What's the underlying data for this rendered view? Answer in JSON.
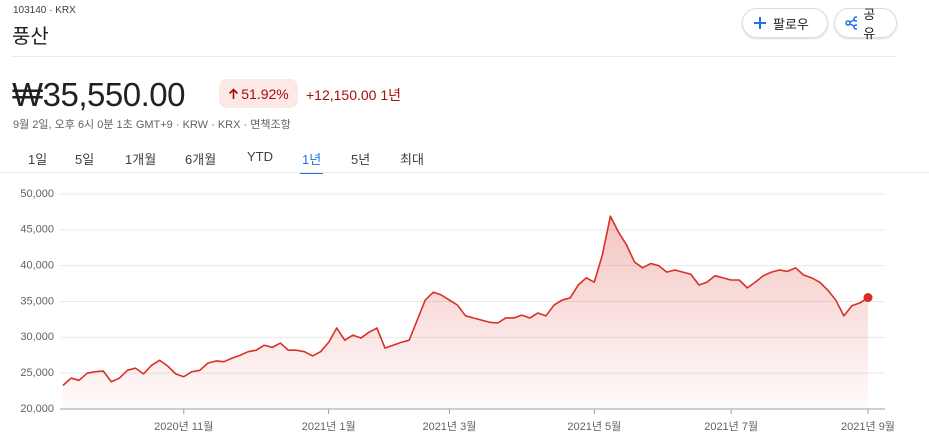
{
  "header": {
    "code": "103140 · KRX",
    "name": "풍산",
    "follow": "팔로우",
    "share": "공유"
  },
  "quote": {
    "price": "₩35,550.00",
    "change_pct": "51.92%",
    "change_abs": "+12,150.00",
    "period": "1년",
    "meta": "9월 2일, 오후 6시 0분 1초 GMT+9 · KRW · KRX · 면책조항"
  },
  "ranges": {
    "items": [
      "1일",
      "5일",
      "1개월",
      "6개월",
      "YTD",
      "1년",
      "5년",
      "최대"
    ],
    "selected": 5
  },
  "chart_data": {
    "type": "line",
    "color": "#d93025",
    "categories": [
      null,
      null,
      null,
      null,
      null,
      null,
      null,
      null,
      null,
      null,
      null,
      null,
      null,
      null,
      null,
      "2020년 11월",
      null,
      null,
      null,
      null,
      null,
      null,
      null,
      null,
      null,
      null,
      null,
      null,
      null,
      null,
      null,
      null,
      null,
      "2021년 1월",
      null,
      null,
      null,
      null,
      null,
      null,
      null,
      null,
      null,
      null,
      null,
      null,
      null,
      null,
      "2021년 3월",
      null,
      null,
      null,
      null,
      null,
      null,
      null,
      null,
      null,
      null,
      null,
      null,
      null,
      null,
      null,
      null,
      null,
      "2021년 5월",
      null,
      null,
      null,
      null,
      null,
      null,
      null,
      null,
      null,
      null,
      null,
      null,
      null,
      null,
      null,
      null,
      "2021년 7월",
      null,
      null,
      null,
      null,
      null,
      null,
      null,
      null,
      null,
      null,
      null,
      null,
      null,
      null,
      null,
      null,
      "2021년 9월"
    ],
    "values": [
      23300,
      24300,
      24000,
      25000,
      25200,
      25300,
      23800,
      24300,
      25400,
      25700,
      24900,
      26100,
      26800,
      26000,
      24900,
      24500,
      25200,
      25400,
      26400,
      26700,
      26600,
      27100,
      27500,
      28000,
      28200,
      28900,
      28600,
      29200,
      28200,
      28200,
      28000,
      27400,
      28000,
      29300,
      31300,
      29600,
      30300,
      29900,
      30700,
      31300,
      28500,
      28900,
      29300,
      29600,
      32400,
      35200,
      36300,
      35900,
      35200,
      34500,
      33000,
      32700,
      32400,
      32100,
      32000,
      32700,
      32700,
      33100,
      32700,
      33400,
      33000,
      34500,
      35200,
      35500,
      37300,
      38300,
      37700,
      41500,
      46900,
      44700,
      42900,
      40500,
      39700,
      40300,
      40000,
      39100,
      39400,
      39100,
      38800,
      37300,
      37700,
      38600,
      38300,
      38000,
      38000,
      36900,
      37700,
      38600,
      39100,
      39400,
      39200,
      39700,
      38700,
      38300,
      37700,
      36600,
      35200,
      33000,
      34400,
      34800,
      35550
    ],
    "ylim": [
      20000,
      50000
    ],
    "yticks": [
      {
        "value": 20000,
        "label": "20,000"
      },
      {
        "value": 25000,
        "label": "25,000"
      },
      {
        "value": 30000,
        "label": "30,000"
      },
      {
        "value": 35000,
        "label": "35,000"
      },
      {
        "value": 40000,
        "label": "40,000"
      },
      {
        "value": 45000,
        "label": "45,000"
      },
      {
        "value": 50000,
        "label": "50,000"
      }
    ],
    "grid": true
  }
}
